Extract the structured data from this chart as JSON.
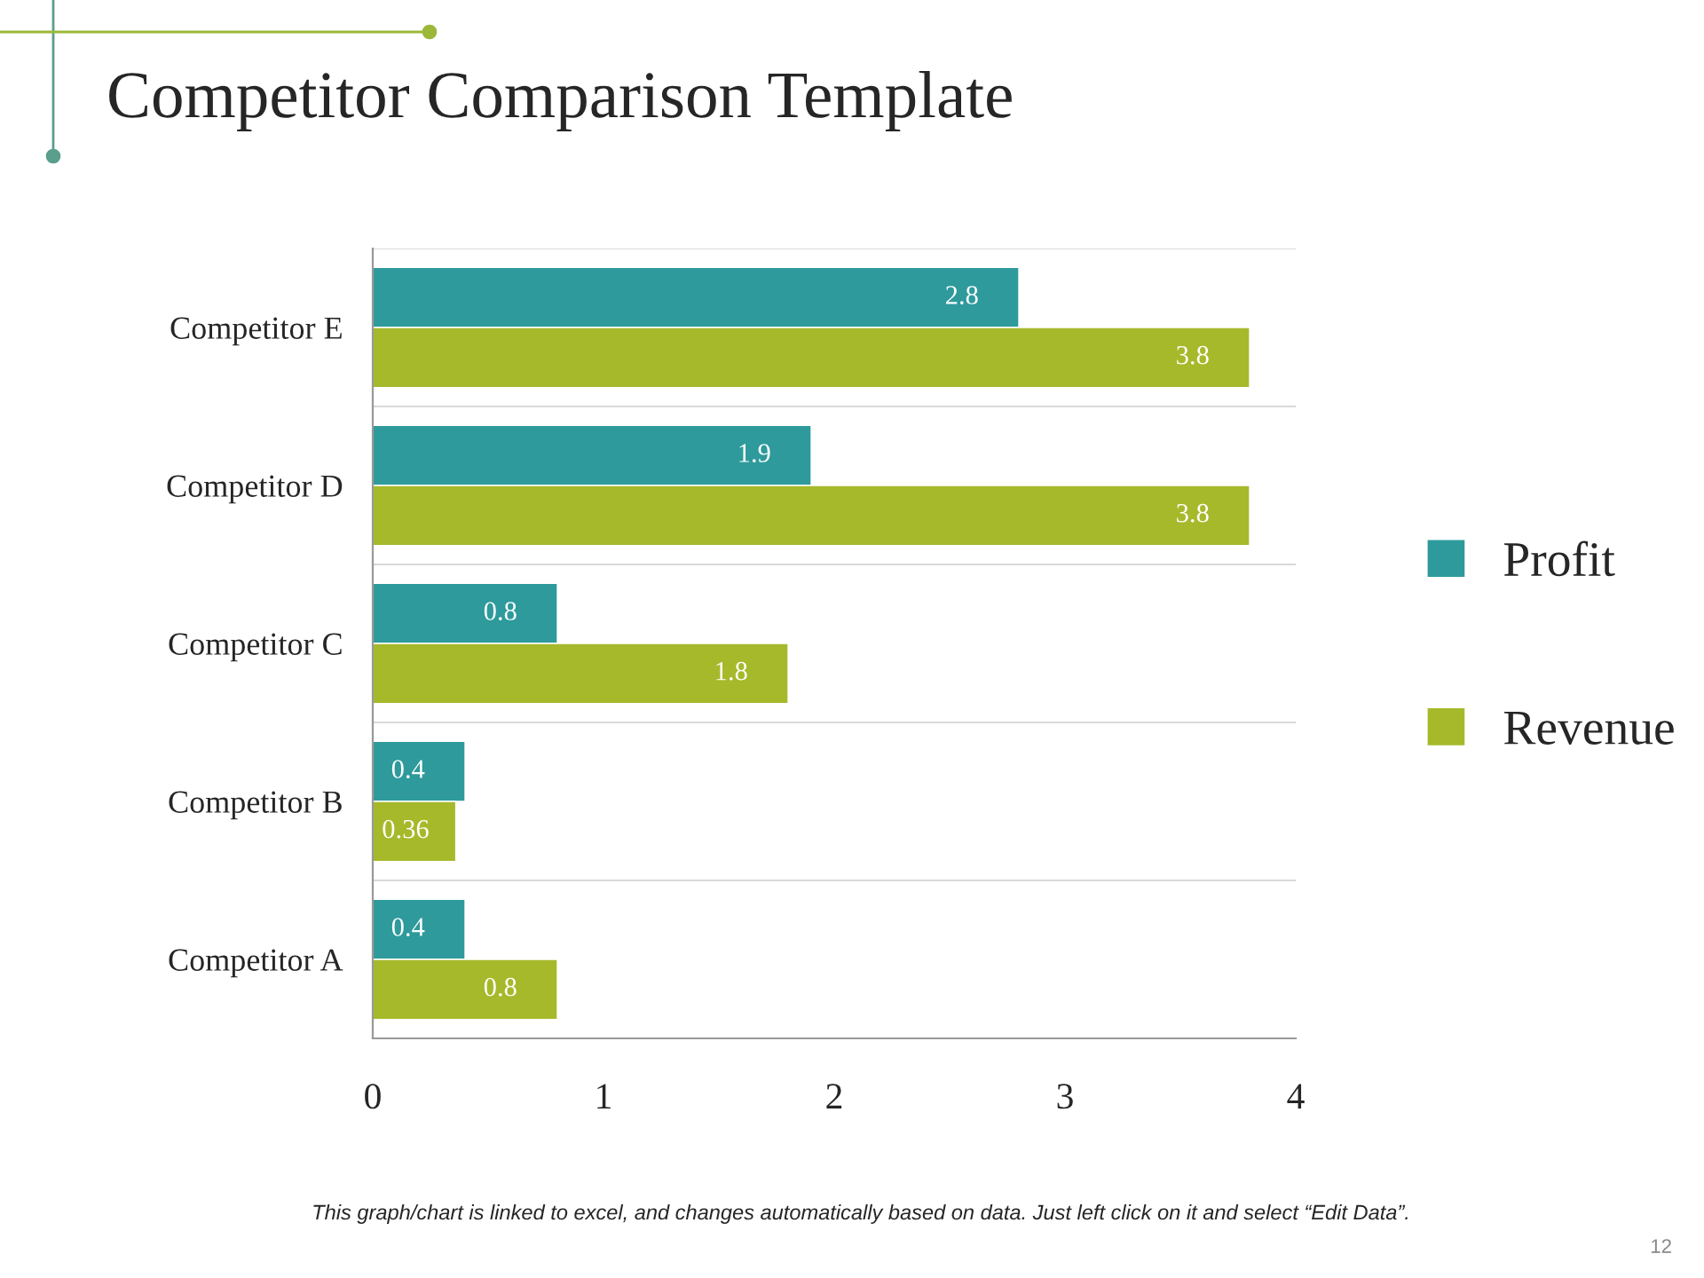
{
  "chart_data": {
    "type": "bar",
    "orientation": "horizontal",
    "title": "Competitor Comparison Template",
    "categories": [
      "Competitor E",
      "Competitor D",
      "Competitor C",
      "Competitor B",
      "Competitor A"
    ],
    "series": [
      {
        "name": "Profit",
        "color": "#2e9a9c",
        "values": [
          2.8,
          1.9,
          0.8,
          0.4,
          0.4
        ],
        "value_labels": [
          "2.8",
          "1.9",
          "0.8",
          "0.4",
          "0.4"
        ]
      },
      {
        "name": "Revenue",
        "color": "#a6b92b",
        "values": [
          3.8,
          3.8,
          1.8,
          0.36,
          0.8
        ],
        "value_labels": [
          "3.8",
          "3.8",
          "1.8",
          "0.36",
          "0.8"
        ]
      }
    ],
    "xlim": [
      0,
      4
    ],
    "xticks": [
      0,
      1,
      2,
      3,
      4
    ],
    "grid": "y",
    "legend": "right",
    "data_labels": true,
    "annotations": [
      "This graph/chart is linked to excel, and changes automatically based on data. Just left click on it and select “Edit Data”.",
      "12"
    ]
  }
}
